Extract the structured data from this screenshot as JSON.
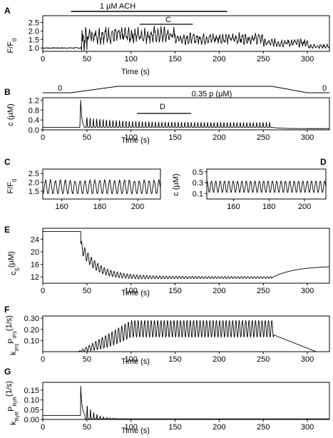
{
  "chart_data": [
    {
      "id": "A",
      "type": "line",
      "panel_label": "A",
      "xlabel": "Time (s)",
      "ylabel": "F/F",
      "ylabel_sub": "0",
      "xlim": [
        0,
        325
      ],
      "ylim": [
        0.8,
        2.9
      ],
      "xticks": [
        0,
        50,
        100,
        150,
        200,
        250,
        300
      ],
      "yticks": [
        1.0,
        1.5,
        2.0,
        2.5
      ],
      "ytick_labels": [
        "1.0",
        "1.5",
        "2.0",
        "2.5"
      ],
      "series": [
        {
          "style": "noisy-osc",
          "segments": [
            {
              "x0": 0,
              "x1": 43,
              "base": 1.0,
              "amp": 0.0
            },
            {
              "x0": 43,
              "x1": 50,
              "base": 1.4,
              "amp": 1.2
            },
            {
              "x0": 50,
              "x1": 150,
              "base": 1.75,
              "amp": 0.6
            },
            {
              "x0": 150,
              "x1": 250,
              "base": 1.55,
              "amp": 0.4
            },
            {
              "x0": 250,
              "x1": 300,
              "base": 1.3,
              "amp": 0.3
            },
            {
              "x0": 300,
              "x1": 325,
              "base": 1.1,
              "amp": 0.15
            }
          ]
        }
      ],
      "annotations": [
        {
          "text": "1 µM ACH",
          "bar_x": [
            32,
            209
          ],
          "level": "top"
        },
        {
          "text": "C",
          "bar_x": [
            110,
            170
          ],
          "level": "inner"
        }
      ]
    },
    {
      "id": "B",
      "type": "line",
      "panel_label": "B",
      "xlabel": "Time (s)",
      "ylabel": "c (µM)",
      "xlim": [
        0,
        325
      ],
      "ylim": [
        0,
        1.3
      ],
      "xticks": [
        0,
        50,
        100,
        150,
        200,
        250,
        300
      ],
      "yticks": [
        0.0,
        0.4,
        0.8,
        1.2
      ],
      "ytick_labels": [
        "0.0",
        "0.4",
        "0.8",
        "1.2"
      ],
      "stimulus_profile": {
        "points": [
          [
            0,
            0
          ],
          [
            32,
            0
          ],
          [
            85,
            0.35
          ],
          [
            260,
            0.35
          ],
          [
            300,
            0
          ],
          [
            325,
            0
          ]
        ],
        "labels": [
          "0",
          "0.35  p (µM)",
          "0"
        ]
      },
      "series": [
        {
          "style": "spike-decay",
          "baseline": 0.1,
          "spike_x": 43,
          "spike_peak": 1.2,
          "osc_start": 50,
          "osc_end": 260,
          "osc_peak": 0.5,
          "osc_steady": 0.3,
          "osc_period": 3.7,
          "tail": 0.05
        }
      ],
      "annotations": [
        {
          "text": "D",
          "bar_x": [
            107,
            168
          ],
          "level": "inner"
        }
      ]
    },
    {
      "id": "C",
      "type": "line",
      "panel_label": "C",
      "xlabel": "",
      "ylabel": "F/F",
      "ylabel_sub": "0",
      "xlim": [
        150,
        212
      ],
      "ylim": [
        1.05,
        2.75
      ],
      "xticks": [
        160,
        180,
        200
      ],
      "yticks": [
        1.5,
        2.0,
        2.5
      ],
      "ytick_labels": [
        "1.5",
        "2.0",
        "2.5"
      ],
      "series": [
        {
          "style": "osc",
          "min": 1.35,
          "max": 2.1,
          "period": 2.6,
          "jitter": 0.15
        }
      ]
    },
    {
      "id": "D",
      "type": "line",
      "panel_label": "D",
      "xlabel": "",
      "ylabel": "c (µM)",
      "xlim": [
        145,
        212
      ],
      "ylim": [
        0.0,
        0.55
      ],
      "xticks": [
        160,
        180,
        200
      ],
      "yticks": [
        0.1,
        0.3,
        0.5
      ],
      "ytick_labels": [
        "0.1",
        "0.3",
        "0.5"
      ],
      "series": [
        {
          "style": "osc",
          "min": 0.12,
          "max": 0.33,
          "period": 2.45,
          "jitter": 0.0
        }
      ]
    },
    {
      "id": "E",
      "type": "line",
      "panel_label": "E",
      "xlabel": "Time (s)",
      "ylabel": "c",
      "ylabel_sub": "S",
      "ylabel_suffix": "(µM)",
      "xlim": [
        0,
        325
      ],
      "ylim": [
        10,
        27.5
      ],
      "xticks": [
        0,
        50,
        100,
        150,
        200,
        250,
        300
      ],
      "yticks": [
        12,
        16,
        20,
        24
      ],
      "ytick_labels": [
        "12",
        "16",
        "20",
        "24"
      ],
      "series": [
        {
          "style": "store",
          "start": 26.5,
          "drop_x": 43,
          "drop_to": 22,
          "settle": 11.8,
          "settle_x": 100,
          "osc_end": 260,
          "recover_to": 15.5
        }
      ]
    },
    {
      "id": "F",
      "type": "line",
      "panel_label": "F",
      "xlabel": "Time (s)",
      "ylabel": "k",
      "ylabel_sub": "IP3",
      "ylabel_mid": "P",
      "ylabel_sub2": "IP3",
      "ylabel_suffix": "(1/s)",
      "xlim": [
        0,
        325
      ],
      "ylim": [
        0.0,
        0.32
      ],
      "xticks": [
        0,
        50,
        100,
        150,
        200,
        250,
        300
      ],
      "yticks": [
        0.1,
        0.2,
        0.3
      ],
      "ytick_labels": [
        "0.10",
        "0.20",
        "0.30"
      ],
      "series": [
        {
          "style": "envelope-osc",
          "rise_start": 40,
          "full_x": 100,
          "end_x": 262,
          "max": 0.28,
          "min": 0.13,
          "decay_end": 310
        }
      ]
    },
    {
      "id": "G",
      "type": "line",
      "panel_label": "G",
      "xlabel": "Time (s)",
      "ylabel": "k",
      "ylabel_sub": "RyR",
      "ylabel_mid": "P",
      "ylabel_sub2": "RyR",
      "ylabel_suffix": "(1/s)",
      "xlim": [
        0,
        325
      ],
      "ylim": [
        0.0,
        0.19
      ],
      "xticks": [
        0,
        50,
        100,
        150,
        200,
        250,
        300
      ],
      "yticks": [
        0.0,
        0.05,
        0.1,
        0.15
      ],
      "ytick_labels": [
        "0.00",
        "0.05",
        "0.10",
        "0.15"
      ],
      "series": [
        {
          "style": "ryr",
          "baseline": 0.02,
          "spike_x": 43,
          "spike_peak": 0.17,
          "osc_end": 100
        }
      ]
    }
  ]
}
